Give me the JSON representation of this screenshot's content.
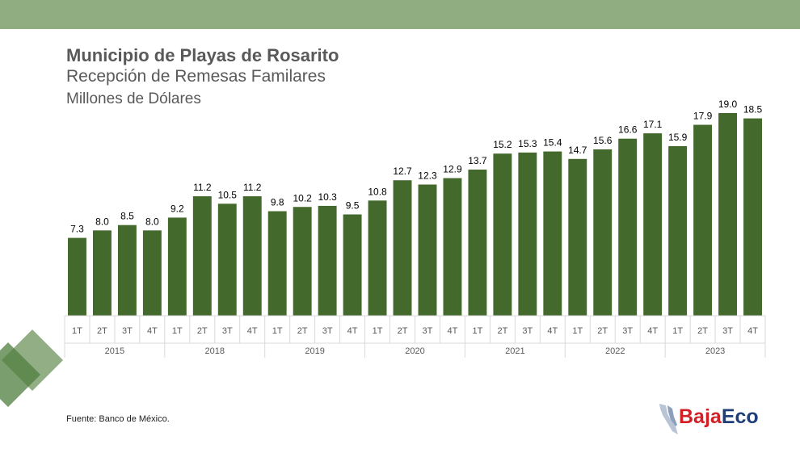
{
  "header": {
    "title": "Municipio de Playas de Rosarito",
    "subtitle": "Recepción de Remesas Familares",
    "unit": "Millones de Dólares"
  },
  "footer": {
    "source": "Fuente: Banco de México.",
    "logo_part1": "Baja",
    "logo_part2": "Eco"
  },
  "colors": {
    "bar": "#44692c",
    "topbar": "#8fad81",
    "accent_green": "#5e8e4a",
    "logo_red": "#d21f26",
    "logo_blue": "#1f3f7a"
  },
  "chart_data": {
    "type": "bar",
    "title": "Recepción de Remesas Familares",
    "ylabel": "Millones de Dólares",
    "ylim": [
      0,
      19
    ],
    "grid": false,
    "groups": [
      {
        "label": "2015",
        "categories": [
          "1T",
          "2T",
          "3T",
          "4T"
        ]
      },
      {
        "label": "2018",
        "categories": [
          "1T",
          "2T",
          "3T",
          "4T"
        ]
      },
      {
        "label": "2019",
        "categories": [
          "1T",
          "2T",
          "3T",
          "4T"
        ]
      },
      {
        "label": "2020",
        "categories": [
          "1T",
          "2T",
          "3T",
          "4T"
        ]
      },
      {
        "label": "2021",
        "categories": [
          "1T",
          "2T",
          "3T",
          "4T"
        ]
      },
      {
        "label": "2022",
        "categories": [
          "1T",
          "2T",
          "3T",
          "4T"
        ]
      },
      {
        "label": "2023",
        "categories": [
          "1T",
          "2T",
          "3T",
          "4T"
        ]
      }
    ],
    "values": [
      7.3,
      8.0,
      8.5,
      8.0,
      9.2,
      11.2,
      10.5,
      11.2,
      9.8,
      10.2,
      10.3,
      9.5,
      10.8,
      12.7,
      12.3,
      12.9,
      13.7,
      15.2,
      15.3,
      15.4,
      14.7,
      15.6,
      16.6,
      17.1,
      15.9,
      17.9,
      19.0,
      18.5
    ],
    "labels": [
      "7.3",
      "8.0",
      "8.5",
      "8.0",
      "9.2",
      "11.2",
      "10.5",
      "11.2",
      "9.8",
      "10.2",
      "10.3",
      "9.5",
      "10.8",
      "12.7",
      "12.3",
      "12.9",
      "13.7",
      "15.2",
      "15.3",
      "15.4",
      "14.7",
      "15.6",
      "16.6",
      "17.1",
      "15.9",
      "17.9",
      "19.0",
      "18.5"
    ]
  }
}
